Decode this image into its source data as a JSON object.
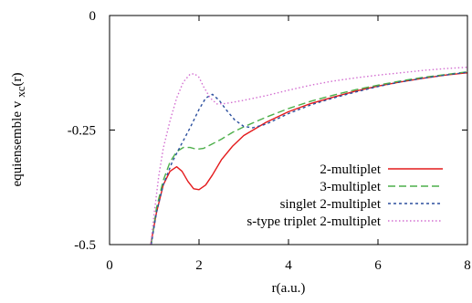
{
  "chart_data": {
    "type": "line",
    "title": "",
    "xlabel": "r(a.u.)",
    "ylabel_main": "equiensemble v",
    "ylabel_sub": "xc",
    "ylabel_tail": "(r)",
    "xlim": [
      0,
      8
    ],
    "ylim": [
      -0.5,
      0
    ],
    "x_ticks": [
      0,
      2,
      4,
      6,
      8
    ],
    "x_tick_labels": [
      "0",
      "2",
      "4",
      "6",
      "8"
    ],
    "y_ticks": [
      0,
      -0.25,
      -0.5
    ],
    "y_tick_labels": [
      "0",
      "-0.25",
      "-0.5"
    ],
    "grid": false,
    "legend_position": "bottom-right",
    "series": [
      {
        "name": "2-multiplet",
        "color": "#e41a1c",
        "dash": "solid",
        "x": [
          0.92,
          1.05,
          1.2,
          1.35,
          1.5,
          1.62,
          1.75,
          1.88,
          2.0,
          2.15,
          2.3,
          2.5,
          2.75,
          3.0,
          3.5,
          4.0,
          4.5,
          5.0,
          5.5,
          6.0,
          6.5,
          7.0,
          7.5,
          8.0
        ],
        "y": [
          -0.5,
          -0.43,
          -0.37,
          -0.34,
          -0.33,
          -0.34,
          -0.362,
          -0.378,
          -0.38,
          -0.37,
          -0.348,
          -0.315,
          -0.285,
          -0.262,
          -0.233,
          -0.21,
          -0.192,
          -0.178,
          -0.165,
          -0.154,
          -0.145,
          -0.137,
          -0.13,
          -0.125
        ]
      },
      {
        "name": "3-multiplet",
        "color": "#4daf4a",
        "dash": "8,4",
        "x": [
          0.93,
          1.05,
          1.2,
          1.35,
          1.5,
          1.65,
          1.8,
          1.95,
          2.1,
          2.3,
          2.5,
          2.75,
          3.0,
          3.5,
          4.0,
          4.5,
          5.0,
          5.5,
          6.0,
          6.5,
          7.0,
          7.5,
          8.0
        ],
        "y": [
          -0.5,
          -0.42,
          -0.36,
          -0.32,
          -0.297,
          -0.288,
          -0.288,
          -0.292,
          -0.29,
          -0.28,
          -0.27,
          -0.255,
          -0.243,
          -0.222,
          -0.203,
          -0.187,
          -0.174,
          -0.162,
          -0.152,
          -0.143,
          -0.135,
          -0.129,
          -0.123
        ]
      },
      {
        "name": "singlet 2-multiplet",
        "color": "#2b4f9e",
        "dash": "3,3",
        "x": [
          0.93,
          1.05,
          1.2,
          1.4,
          1.6,
          1.8,
          2.0,
          2.15,
          2.3,
          2.45,
          2.6,
          2.8,
          3.0,
          3.2,
          3.5,
          4.0,
          4.5,
          5.0,
          5.5,
          6.0,
          6.5,
          7.0,
          7.5,
          8.0
        ],
        "y": [
          -0.5,
          -0.43,
          -0.37,
          -0.32,
          -0.282,
          -0.245,
          -0.205,
          -0.18,
          -0.172,
          -0.185,
          -0.205,
          -0.228,
          -0.242,
          -0.245,
          -0.237,
          -0.214,
          -0.195,
          -0.18,
          -0.167,
          -0.155,
          -0.145,
          -0.137,
          -0.13,
          -0.124
        ]
      },
      {
        "name": "s-type triplet 2-multiplet",
        "color": "#d36fd1",
        "dash": "1.5,2.5",
        "x": [
          0.92,
          1.0,
          1.1,
          1.2,
          1.35,
          1.5,
          1.65,
          1.8,
          1.9,
          2.0,
          2.1,
          2.25,
          2.4,
          2.6,
          3.0,
          3.5,
          4.0,
          4.5,
          5.0,
          5.5,
          6.0,
          6.5,
          7.0,
          7.5,
          8.0
        ],
        "y": [
          -0.5,
          -0.43,
          -0.35,
          -0.29,
          -0.23,
          -0.18,
          -0.145,
          -0.128,
          -0.127,
          -0.135,
          -0.155,
          -0.18,
          -0.193,
          -0.192,
          -0.185,
          -0.175,
          -0.163,
          -0.152,
          -0.143,
          -0.136,
          -0.13,
          -0.125,
          -0.12,
          -0.116,
          -0.113
        ]
      }
    ]
  }
}
